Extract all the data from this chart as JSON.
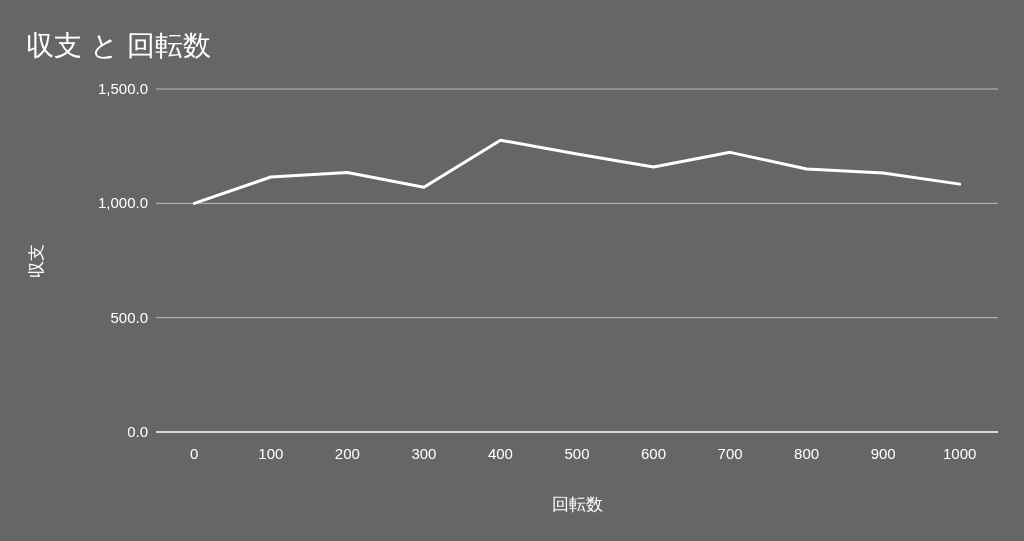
{
  "chart_data": {
    "type": "line",
    "title": "収支 と 回転数",
    "xlabel": "回転数",
    "ylabel": "収支",
    "categories": [
      "0",
      "100",
      "200",
      "300",
      "400",
      "500",
      "600",
      "700",
      "800",
      "900",
      "1000"
    ],
    "series": [
      {
        "color": "#ffffff",
        "values": [
          1000,
          1115,
          1135,
          1070,
          1276,
          1216,
          1159,
          1223,
          1150,
          1133,
          1084
        ]
      }
    ],
    "ylim": [
      0,
      1500
    ],
    "yticks": [
      {
        "value": 0,
        "label": "0.0"
      },
      {
        "value": 500,
        "label": "500.0"
      },
      {
        "value": 1000,
        "label": "1,000.0"
      },
      {
        "value": 1500,
        "label": "1,500.0"
      }
    ],
    "grid": "y",
    "marker": "none",
    "line_style": "solid"
  }
}
